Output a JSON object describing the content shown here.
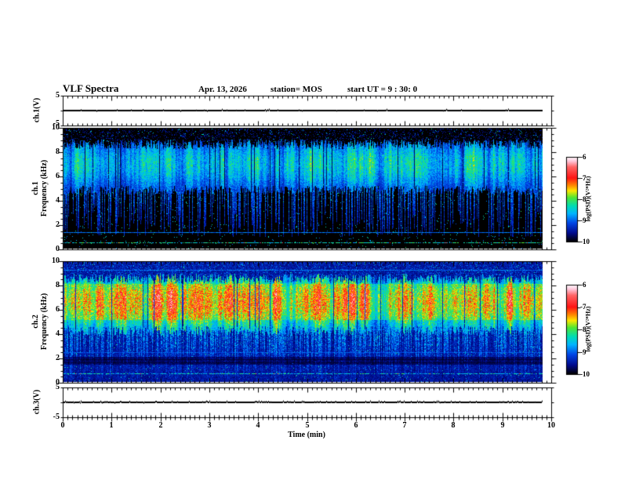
{
  "header": {
    "title": "VLF Spectra",
    "date": "Apr. 13, 2026",
    "station": "station= MOS",
    "start_ut": "start UT =  9 : 30: 0"
  },
  "axes": {
    "x": {
      "label": "Time  (min)",
      "range_min": [
        0,
        10
      ],
      "ticks": [
        "0",
        "1",
        "2",
        "3",
        "4",
        "5",
        "6",
        "7",
        "8",
        "9",
        "10"
      ]
    },
    "freq_ticks": [
      "10",
      "8",
      "6",
      "4",
      "2",
      "0"
    ],
    "volt_ticks": [
      "5",
      "-5"
    ]
  },
  "panels": {
    "ch1_voltage": {
      "label_rotated": "ch.1(V)",
      "ylim": [
        -5,
        5
      ]
    },
    "ch1_spec": {
      "label_line1": "ch.1",
      "label_line2": "Frequency (kHz)",
      "ylim_khz": [
        0,
        10
      ]
    },
    "ch2_spec": {
      "label_line1": "ch.2",
      "label_line2": "Frequency (kHz)",
      "ylim_khz": [
        0,
        10
      ]
    },
    "ch3_voltage": {
      "label_rotated": "ch.3(V)",
      "ylim": [
        -5,
        5
      ]
    }
  },
  "colorbar": {
    "label": "log(PSD)(V²*Hz)",
    "ticks": [
      "-6",
      "-7",
      "-8",
      "-9",
      "-10"
    ],
    "zlim": [
      -10,
      -6
    ],
    "stops": [
      [
        0.0,
        "#000000"
      ],
      [
        0.1,
        "#000a8c"
      ],
      [
        0.22,
        "#0046e6"
      ],
      [
        0.33,
        "#00b4ff"
      ],
      [
        0.42,
        "#00dcb4"
      ],
      [
        0.52,
        "#50e632"
      ],
      [
        0.6,
        "#ffe600"
      ],
      [
        0.66,
        "#ff8c00"
      ],
      [
        0.75,
        "#ff1414"
      ],
      [
        0.88,
        "#ff6464"
      ],
      [
        0.95,
        "#ffc8dc"
      ],
      [
        1.0,
        "#ffffff"
      ]
    ]
  },
  "chart_data": [
    {
      "id": "ch1_voltage",
      "type": "line",
      "ylabel": "ch.1(V)",
      "ylim": [
        -5,
        5
      ],
      "xlim_min": [
        0,
        9.85
      ],
      "mean_volts": 0,
      "description": "flat trace at 0 V"
    },
    {
      "id": "ch1_spectrogram",
      "type": "heatmap",
      "ylabel": "ch.1 Frequency (kHz)",
      "ylim_khz": [
        0,
        10
      ],
      "xlim_min": [
        0,
        9.85
      ],
      "zlabel": "log(PSD)(V²*Hz)",
      "zlim": [
        -10,
        -6
      ],
      "render": {
        "seed": 20260413,
        "background_level": -10,
        "band": {
          "freq_low": 4.9,
          "freq_high": 9.15,
          "peak_freq": 7.1,
          "peak_level": -7.7,
          "blob_boost": 0
        },
        "streaks": {
          "density": 0.4,
          "min_freq": 1.0,
          "level": -8.6
        },
        "lines": [
          {
            "freq": 1.35,
            "level": -8.9,
            "dashed": false
          },
          {
            "freq": 0.5,
            "level": -8.2,
            "dashed": true
          }
        ]
      }
    },
    {
      "id": "ch2_spectrogram",
      "type": "heatmap",
      "ylabel": "ch.2 Frequency (kHz)",
      "ylim_khz": [
        0,
        10
      ],
      "xlim_min": [
        0,
        9.85
      ],
      "zlabel": "log(PSD)(V²*Hz)",
      "zlim": [
        -10,
        -6
      ],
      "render": {
        "seed": 930,
        "background_level": -9.4,
        "band": {
          "freq_low": 4.3,
          "freq_high": 9.05,
          "peak_freq": 6.7,
          "peak_level": -6.7,
          "blob_boost": 0.28
        },
        "streaks": {
          "density": 0.55,
          "min_freq": 0.3,
          "level": -8.35
        },
        "dark_band": {
          "freq_low": 1.5,
          "freq_high": 2.1
        },
        "lines": [
          {
            "freq": 0.75,
            "level": -8.3,
            "dashed": true
          },
          {
            "freq": 9.35,
            "level": -8.9,
            "dashed": false
          },
          {
            "freq": 4.4,
            "level": -9.0,
            "dashed": false
          },
          {
            "freq": 2.5,
            "level": -9.05,
            "dashed": false
          }
        ]
      }
    },
    {
      "id": "ch3_voltage",
      "type": "line",
      "ylabel": "ch.3(V)",
      "ylim": [
        -5,
        5
      ],
      "xlim_min": [
        0,
        9.85
      ],
      "mean_volts": 0,
      "description": "flat trace at 0 V with small serrations"
    }
  ]
}
